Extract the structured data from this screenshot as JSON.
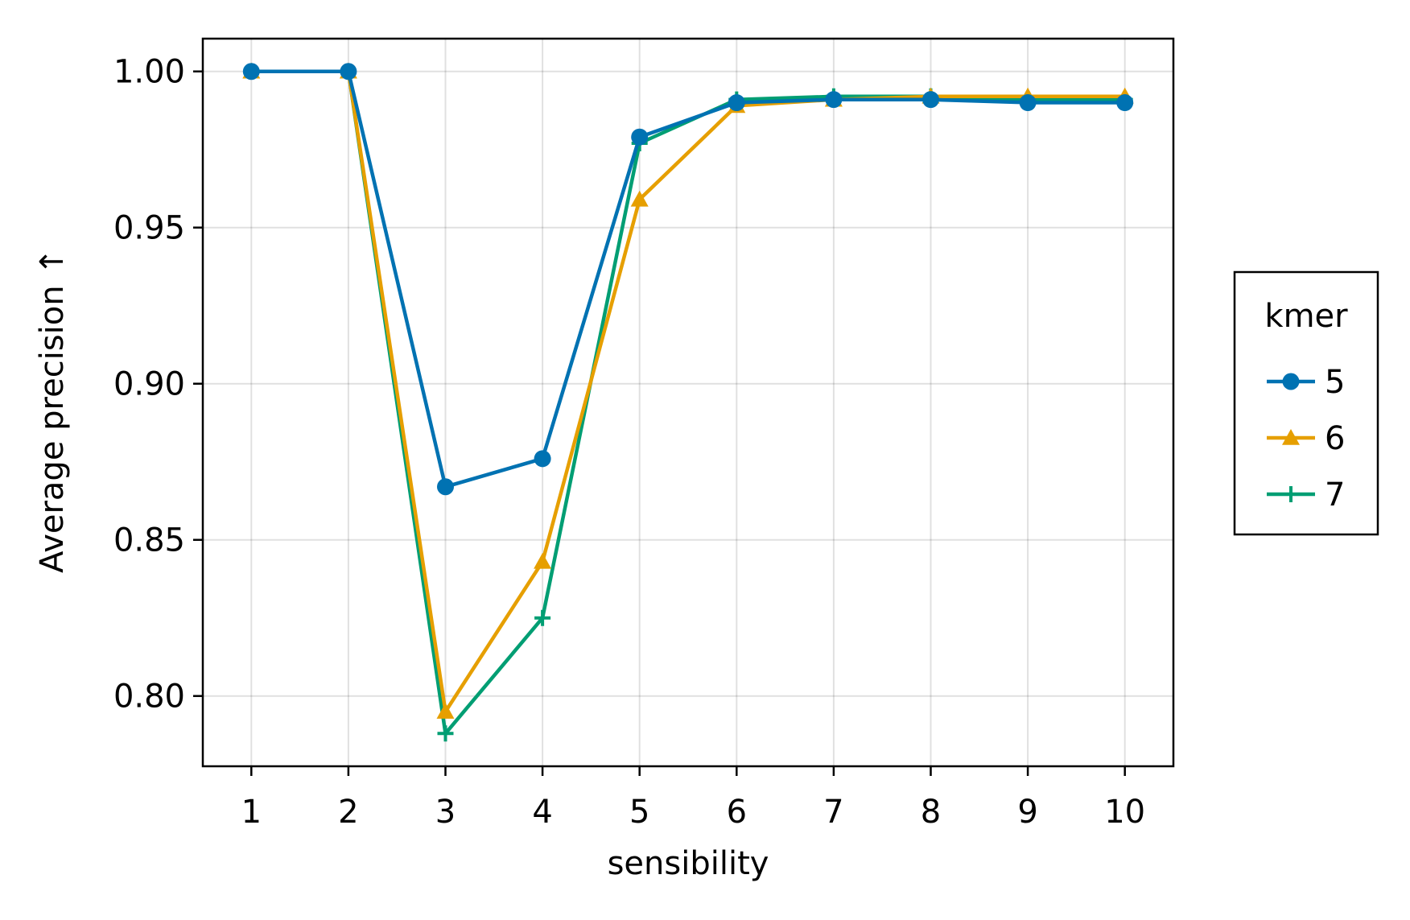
{
  "chart_data": {
    "type": "line",
    "title": "",
    "xlabel": "sensibility",
    "ylabel": "Average precision ↑",
    "x": [
      1,
      2,
      3,
      4,
      5,
      6,
      7,
      8,
      9,
      10
    ],
    "x_ticks": [
      "1",
      "2",
      "3",
      "4",
      "5",
      "6",
      "7",
      "8",
      "9",
      "10"
    ],
    "y_ticks": [
      0.8,
      0.85,
      0.9,
      0.95,
      1.0
    ],
    "y_tick_labels": [
      "0.80",
      "0.85",
      "0.90",
      "0.95",
      "1.00"
    ],
    "xlim": [
      0.5,
      10.5
    ],
    "ylim": [
      0.7775,
      1.0105
    ],
    "grid": true,
    "legend": {
      "title": "kmer",
      "position": "right"
    },
    "series": [
      {
        "name": "5",
        "color": "#0072b2",
        "marker": "circle",
        "values": [
          1.0,
          1.0,
          0.867,
          0.876,
          0.979,
          0.99,
          0.991,
          0.991,
          0.99,
          0.99
        ]
      },
      {
        "name": "6",
        "color": "#e69f00",
        "marker": "triangle",
        "values": [
          1.0,
          1.0,
          0.795,
          0.843,
          0.959,
          0.989,
          0.991,
          0.992,
          0.992,
          0.992
        ]
      },
      {
        "name": "7",
        "color": "#009e73",
        "marker": "cross",
        "values": [
          1.0,
          1.0,
          0.788,
          0.825,
          0.977,
          0.991,
          0.992,
          0.992,
          0.991,
          0.991
        ]
      }
    ]
  }
}
